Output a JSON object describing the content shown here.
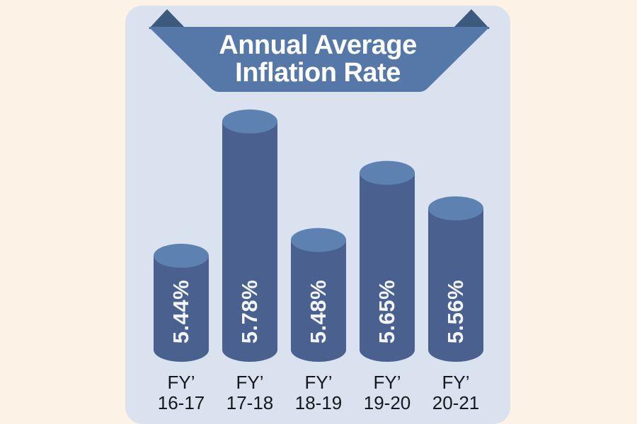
{
  "chart_data": {
    "type": "bar",
    "style": "3d-cylinder-infographic",
    "title": "Annual Average Inflation Rate",
    "title_line1": "Annual Average",
    "title_line2": "Inflation Rate",
    "categories": [
      "FY’ 16-17",
      "FY’ 17-18",
      "FY’ 18-19",
      "FY’ 19-20",
      "FY’ 20-21"
    ],
    "category_line1": "FY’",
    "category_line2": [
      "16-17",
      "17-18",
      "18-19",
      "19-20",
      "20-21"
    ],
    "values": [
      5.44,
      5.78,
      5.48,
      5.65,
      5.56
    ],
    "value_labels": [
      "5.44%",
      "5.78%",
      "5.48%",
      "5.65%",
      "5.56%"
    ],
    "unit": "%",
    "ylim": [
      5.14,
      5.9
    ],
    "axis_shown": false,
    "grid": false,
    "legend": "none",
    "value_label_position": "inside-bar-rotated-vertical"
  },
  "colors": {
    "background": "#fcf2e6",
    "panel": "#d9e2ee",
    "ribbon": "#5678a8",
    "ribbon_fold": "#3d5a7e",
    "cylinder_body": "#4a6190",
    "cylinder_top": "#5d81b0",
    "title_text": "#ffffff",
    "value_text": "#f2f5f9",
    "category_text": "#15181c"
  }
}
